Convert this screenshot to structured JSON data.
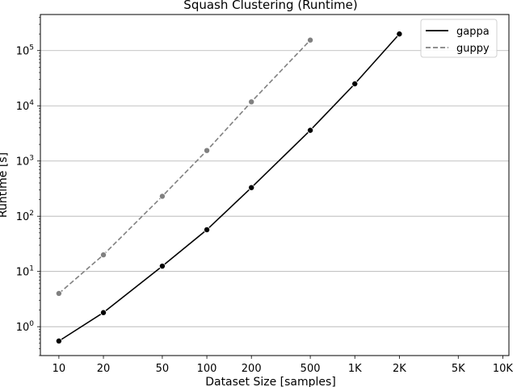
{
  "chart_data": {
    "type": "line",
    "title": "Squash Clustering  (Runtime)",
    "xlabel": "Dataset Size  [samples]",
    "ylabel": "Runtime  [s]",
    "x_scale": "log",
    "y_scale": "log",
    "categories": [
      "10",
      "20",
      "50",
      "100",
      "200",
      "500",
      "1K",
      "2K",
      "5K",
      "10K"
    ],
    "x_values": [
      10,
      20,
      50,
      100,
      200,
      500,
      1000,
      2000,
      5000,
      10000
    ],
    "y_ticks": [
      {
        "value": 1,
        "base": "10",
        "exp": "0"
      },
      {
        "value": 10,
        "base": "10",
        "exp": "1"
      },
      {
        "value": 100,
        "base": "10",
        "exp": "2"
      },
      {
        "value": 1000,
        "base": "10",
        "exp": "3"
      },
      {
        "value": 10000,
        "base": "10",
        "exp": "4"
      },
      {
        "value": 100000,
        "base": "10",
        "exp": "5"
      }
    ],
    "ylim": [
      0.3,
      450000
    ],
    "xlim": [
      7.5,
      11000
    ],
    "grid": "horizontal",
    "legend_position": "top-right",
    "series": [
      {
        "name": "gappa",
        "color": "#000000",
        "dash": "solid",
        "x": [
          10,
          20,
          50,
          100,
          200,
          500,
          1000,
          2000
        ],
        "y": [
          0.55,
          1.8,
          12.5,
          57,
          330,
          3600,
          25000,
          200000
        ]
      },
      {
        "name": "guppy",
        "color": "#808080",
        "dash": "dashed",
        "x": [
          10,
          20,
          50,
          100,
          200,
          500
        ],
        "y": [
          4,
          20,
          230,
          1550,
          11800,
          155000
        ]
      }
    ]
  }
}
